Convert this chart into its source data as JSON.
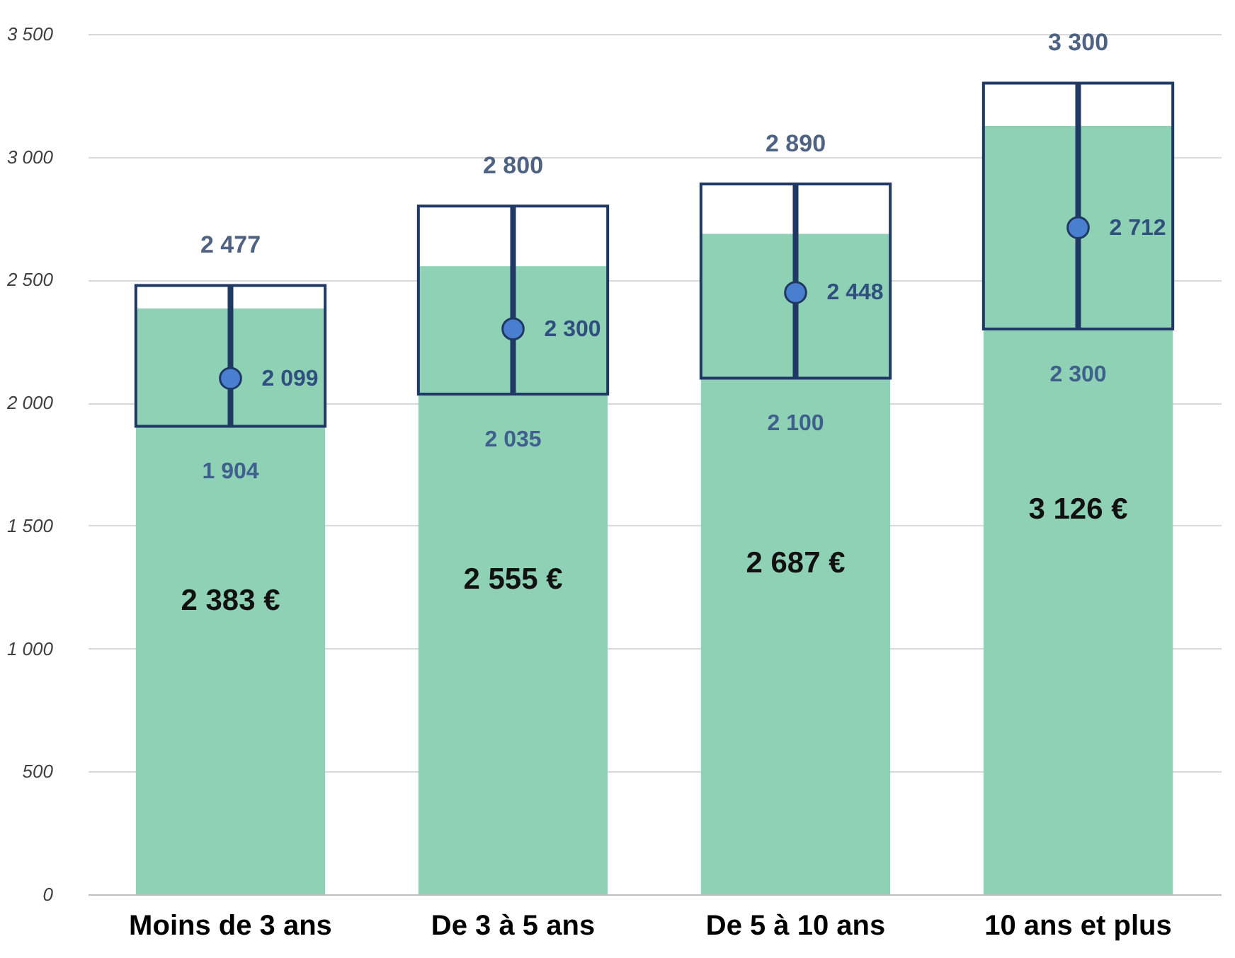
{
  "chart_data": {
    "type": "bar",
    "categories": [
      "Moins de 3 ans",
      "De 3 à 5 ans",
      "De 5 à 10 ans",
      "10 ans et plus"
    ],
    "ylim": [
      0,
      3500
    ],
    "yticks": [
      {
        "value": 0,
        "label": "0"
      },
      {
        "value": 500,
        "label": "500"
      },
      {
        "value": 1000,
        "label": "1 000"
      },
      {
        "value": 1500,
        "label": "1 500"
      },
      {
        "value": 2000,
        "label": "2 000"
      },
      {
        "value": 2500,
        "label": "2 500"
      },
      {
        "value": 3000,
        "label": "3 000"
      },
      {
        "value": 3500,
        "label": "3 500"
      }
    ],
    "grid": "y",
    "marker": "circle",
    "series": [
      {
        "type": "bar",
        "color": "#8fd1b4",
        "values": [
          2383,
          2555,
          2687,
          3126
        ],
        "value_labels": [
          "2 383 €",
          "2 555 €",
          "2 687 €",
          "3 126 €"
        ]
      },
      {
        "type": "scatter",
        "color": "#4a7fd0",
        "values": [
          2099,
          2300,
          2448,
          2712
        ],
        "value_labels": [
          "2 099",
          "2 300",
          "2 448",
          "2 712"
        ],
        "errors": [
          [
            1904,
            2477
          ],
          [
            2035,
            2800
          ],
          [
            2100,
            2890
          ],
          [
            2300,
            3300
          ]
        ]
      }
    ],
    "annotations": [
      {
        "text": "1 904",
        "x": "Moins de 3 ans",
        "y": 1904
      },
      {
        "text": "2 477",
        "x": "Moins de 3 ans",
        "y": 2477
      },
      {
        "text": "2 035",
        "x": "De 3 à 5 ans",
        "y": 2035
      },
      {
        "text": "2 800",
        "x": "De 3 à 5 ans",
        "y": 2800
      },
      {
        "text": "2 100",
        "x": "De 5 à 10 ans",
        "y": 2100
      },
      {
        "text": "2 890",
        "x": "De 5 à 10 ans",
        "y": 2890
      },
      {
        "text": "2 300",
        "x": "10 ans et plus",
        "y": 2300
      },
      {
        "text": "3 300",
        "x": "10 ans et plus",
        "y": 3300
      }
    ]
  }
}
